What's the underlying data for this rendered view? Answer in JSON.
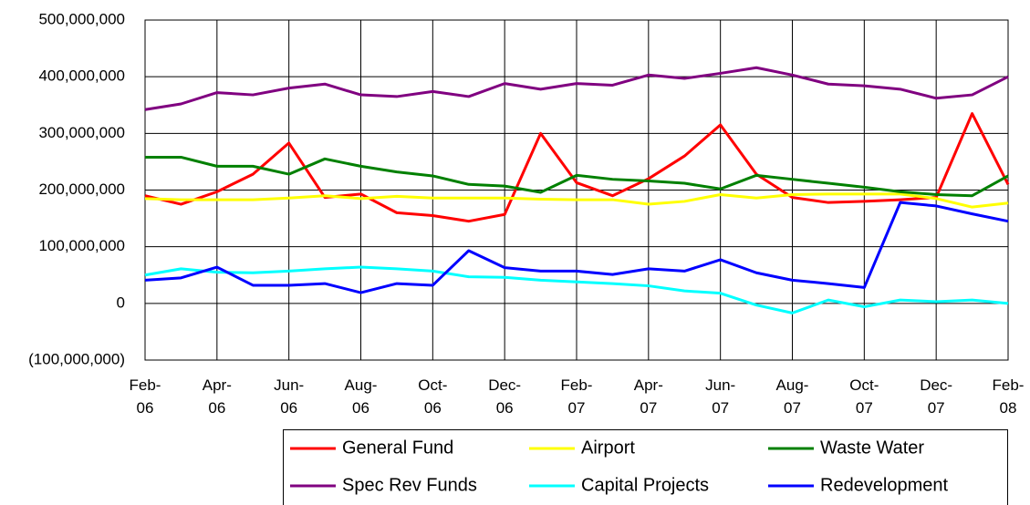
{
  "chart_data": {
    "type": "line",
    "categories": [
      "Feb-06",
      null,
      "Apr-06",
      null,
      "Jun-06",
      null,
      "Aug-06",
      null,
      "Oct-06",
      null,
      "Dec-06",
      null,
      "Feb-07",
      null,
      "Apr-07",
      null,
      "Jun-07",
      null,
      "Aug-07",
      null,
      "Oct-07",
      null,
      "Dec-07",
      null,
      "Feb-08"
    ],
    "series": [
      {
        "name": "General Fund",
        "color": "#ff0000",
        "values": [
          190000000,
          175000000,
          197000000,
          228000000,
          283000000,
          187000000,
          193000000,
          160000000,
          155000000,
          145000000,
          157000000,
          300000000,
          213000000,
          190000000,
          220000000,
          260000000,
          315000000,
          228000000,
          187000000,
          178000000,
          180000000,
          183000000,
          187000000,
          335000000,
          210000000
        ]
      },
      {
        "name": "Airport",
        "color": "#ffff00",
        "values": [
          185000000,
          183000000,
          183000000,
          183000000,
          186000000,
          190000000,
          185000000,
          189000000,
          186000000,
          186000000,
          186000000,
          184000000,
          183000000,
          183000000,
          175000000,
          180000000,
          192000000,
          186000000,
          192000000,
          193000000,
          193000000,
          193000000,
          185000000,
          170000000,
          177000000
        ]
      },
      {
        "name": "Waste Water",
        "color": "#008000",
        "values": [
          258000000,
          258000000,
          242000000,
          242000000,
          228000000,
          255000000,
          242000000,
          232000000,
          225000000,
          210000000,
          207000000,
          196000000,
          226000000,
          219000000,
          216000000,
          212000000,
          202000000,
          226000000,
          219000000,
          212000000,
          205000000,
          197000000,
          192000000,
          190000000,
          225000000
        ]
      },
      {
        "name": "Spec Rev Funds",
        "color": "#800080",
        "values": [
          342000000,
          352000000,
          372000000,
          368000000,
          380000000,
          387000000,
          368000000,
          365000000,
          374000000,
          365000000,
          388000000,
          378000000,
          388000000,
          385000000,
          403000000,
          397000000,
          406000000,
          416000000,
          403000000,
          387000000,
          384000000,
          378000000,
          362000000,
          368000000,
          400000000
        ]
      },
      {
        "name": "Capital Projects",
        "color": "#00ffff",
        "values": [
          50000000,
          61000000,
          55000000,
          54000000,
          57000000,
          61000000,
          64000000,
          61000000,
          57000000,
          47000000,
          46000000,
          41000000,
          38000000,
          35000000,
          31000000,
          22000000,
          18000000,
          -3000000,
          -17000000,
          6000000,
          -6000000,
          6000000,
          3000000,
          6000000,
          0
        ]
      },
      {
        "name": "Redevelopment",
        "color": "#0000ff",
        "values": [
          41000000,
          45000000,
          64000000,
          32000000,
          32000000,
          35000000,
          19000000,
          35000000,
          32000000,
          93000000,
          63000000,
          57000000,
          57000000,
          51000000,
          61000000,
          57000000,
          77000000,
          54000000,
          41000000,
          35000000,
          28000000,
          178000000,
          172000000,
          158000000,
          145000000
        ]
      }
    ],
    "ylim": [
      -100000000,
      500000000
    ],
    "yticks": [
      {
        "value": -100000000,
        "label": "(100,000,000)"
      },
      0,
      {
        "value": 100000000,
        "label": "100,000,000"
      },
      {
        "value": 200000000,
        "label": "200,000,000"
      },
      {
        "value": 300000000,
        "label": "300,000,000"
      },
      {
        "value": 400000000,
        "label": "400,000,000"
      },
      {
        "value": 500000000,
        "label": "500,000,000"
      }
    ],
    "grid": true
  }
}
